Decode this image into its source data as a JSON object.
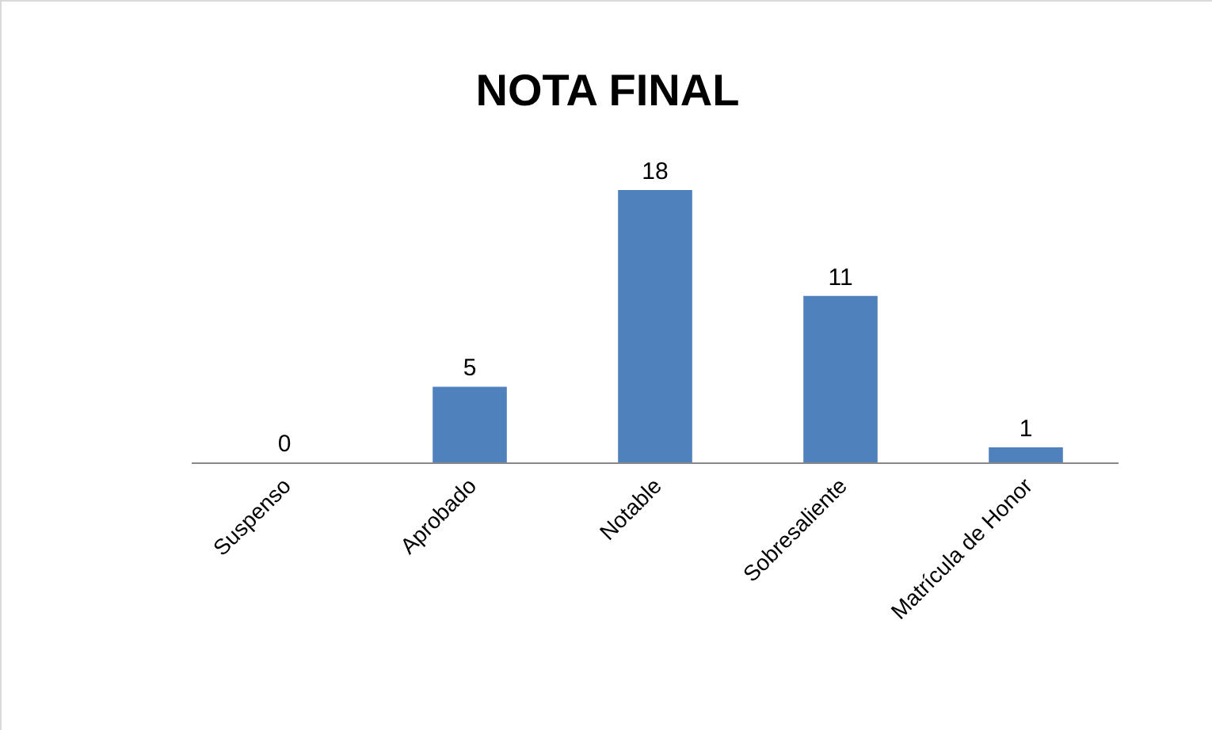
{
  "chart_data": {
    "type": "bar",
    "title": "NOTA FINAL",
    "categories": [
      "Suspenso",
      "Aprobado",
      "Notable",
      "Sobresaliente",
      "Matrícula de Honor"
    ],
    "values": [
      0,
      5,
      18,
      11,
      1
    ],
    "color": "#4f81bd",
    "data_labels": true
  }
}
